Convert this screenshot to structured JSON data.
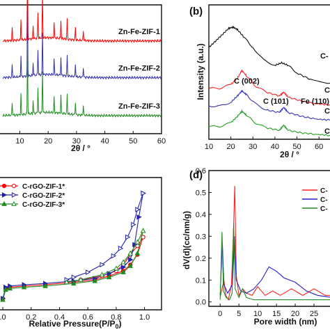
{
  "chart_data": [
    {
      "panel": "a",
      "type": "line",
      "xlabel": "2θ / °",
      "xlim": [
        3,
        60
      ],
      "xticks": [
        10,
        20,
        30,
        40,
        50,
        60
      ],
      "series": [
        {
          "name": "Zn-Fe-ZIF-1",
          "color": "#ff0000",
          "baseline": 0.72,
          "peaks": [
            [
              7.3,
              0.1
            ],
            [
              10.4,
              0.16
            ],
            [
              12.7,
              0.55
            ],
            [
              14.7,
              0.1
            ],
            [
              16.4,
              0.2
            ],
            [
              18.0,
              0.32
            ],
            [
              22.1,
              0.12
            ],
            [
              24.5,
              0.14
            ],
            [
              26.7,
              0.16
            ],
            [
              29.6,
              0.1
            ],
            [
              32.4,
              0.08
            ]
          ]
        },
        {
          "name": "Zn-Fe-ZIF-2",
          "color": "#3333aa",
          "baseline": 0.435,
          "peaks": [
            [
              7.3,
              0.1
            ],
            [
              10.4,
              0.16
            ],
            [
              12.7,
              0.55
            ],
            [
              14.7,
              0.1
            ],
            [
              16.4,
              0.2
            ],
            [
              18.0,
              0.32
            ],
            [
              22.1,
              0.12
            ],
            [
              24.5,
              0.14
            ],
            [
              26.7,
              0.16
            ],
            [
              29.6,
              0.1
            ],
            [
              32.4,
              0.08
            ]
          ]
        },
        {
          "name": "Zn-Fe-ZIF-3",
          "color": "#228b22",
          "baseline": 0.14,
          "peaks": [
            [
              7.3,
              0.1
            ],
            [
              10.4,
              0.16
            ],
            [
              12.7,
              0.55
            ],
            [
              14.7,
              0.1
            ],
            [
              16.4,
              0.2
            ],
            [
              18.0,
              0.32
            ],
            [
              22.1,
              0.12
            ],
            [
              24.5,
              0.14
            ],
            [
              26.7,
              0.16
            ],
            [
              29.6,
              0.1
            ],
            [
              32.4,
              0.08
            ]
          ]
        }
      ]
    },
    {
      "panel": "b",
      "type": "line",
      "label": "(b)",
      "xlabel": "2θ / °",
      "ylabel": "Intensity (a.u.)",
      "xlim": [
        10,
        65
      ],
      "xticks": [
        10,
        20,
        30,
        40,
        50,
        60
      ],
      "xtick_labels": [
        "10",
        "20",
        "30",
        "40",
        "50",
        "60"
      ],
      "annotations": [
        "C (002)",
        "C (101)",
        "Fe (110)"
      ],
      "series_labels": [
        "C-",
        "C",
        "C",
        "C"
      ],
      "series": [
        {
          "color": "#111111",
          "points": [
            [
              10,
              0.72
            ],
            [
              13,
              0.77
            ],
            [
              16,
              0.82
            ],
            [
              19,
              0.87
            ],
            [
              21,
              0.88
            ],
            [
              23,
              0.86
            ],
            [
              26,
              0.8
            ],
            [
              30,
              0.72
            ],
            [
              35,
              0.62
            ],
            [
              40,
              0.58
            ],
            [
              43,
              0.6
            ],
            [
              46,
              0.58
            ],
            [
              50,
              0.52
            ],
            [
              56,
              0.47
            ],
            [
              65,
              0.44
            ]
          ]
        },
        {
          "color": "#ff2020",
          "points": [
            [
              10,
              0.4
            ],
            [
              15,
              0.4
            ],
            [
              20,
              0.43
            ],
            [
              23,
              0.48
            ],
            [
              25,
              0.54
            ],
            [
              27,
              0.5
            ],
            [
              31,
              0.42
            ],
            [
              36,
              0.37
            ],
            [
              42,
              0.34
            ],
            [
              44,
              0.37
            ],
            [
              46,
              0.33
            ],
            [
              52,
              0.3
            ],
            [
              58,
              0.28
            ],
            [
              65,
              0.27
            ]
          ]
        },
        {
          "color": "#3333bb",
          "points": [
            [
              10,
              0.26
            ],
            [
              15,
              0.26
            ],
            [
              20,
              0.29
            ],
            [
              23,
              0.34
            ],
            [
              25,
              0.38
            ],
            [
              27,
              0.35
            ],
            [
              31,
              0.28
            ],
            [
              36,
              0.23
            ],
            [
              42,
              0.21
            ],
            [
              44,
              0.25
            ],
            [
              46,
              0.21
            ],
            [
              52,
              0.18
            ],
            [
              58,
              0.16
            ],
            [
              65,
              0.15
            ]
          ]
        },
        {
          "color": "#22a022",
          "points": [
            [
              10,
              0.1
            ],
            [
              15,
              0.1
            ],
            [
              20,
              0.13
            ],
            [
              23,
              0.18
            ],
            [
              25,
              0.22
            ],
            [
              27,
              0.19
            ],
            [
              31,
              0.13
            ],
            [
              36,
              0.09
            ],
            [
              42,
              0.07
            ],
            [
              44,
              0.11
            ],
            [
              46,
              0.07
            ],
            [
              52,
              0.05
            ],
            [
              58,
              0.04
            ],
            [
              65,
              0.03
            ]
          ]
        }
      ]
    },
    {
      "panel": "c",
      "type": "line",
      "xlabel": "Relative Pressure(P/P",
      "xlabel_sub": "0",
      "xlabel_end": ")",
      "xlim": [
        -0.02,
        1.12
      ],
      "xticks": [
        0.0,
        0.2,
        0.4,
        0.6,
        0.8,
        1.0
      ],
      "xtick_labels": [
        ".0",
        "0.2",
        "0.4",
        "0.6",
        "0.8",
        "1.0"
      ],
      "legend_position": "top-left",
      "series": [
        {
          "name": "C-rGO-ZIF-1*",
          "color": "#ff0000",
          "marker": "circle",
          "adsorption": [
            [
              0.0,
              0.09
            ],
            [
              0.02,
              0.17
            ],
            [
              0.05,
              0.18
            ],
            [
              0.15,
              0.19
            ],
            [
              0.3,
              0.2
            ],
            [
              0.5,
              0.22
            ],
            [
              0.65,
              0.24
            ],
            [
              0.75,
              0.27
            ],
            [
              0.85,
              0.31
            ],
            [
              0.9,
              0.36
            ],
            [
              0.95,
              0.44
            ],
            [
              0.99,
              0.58
            ]
          ],
          "desorption": [
            [
              0.99,
              0.58
            ],
            [
              0.95,
              0.51
            ],
            [
              0.9,
              0.44
            ],
            [
              0.85,
              0.36
            ],
            [
              0.8,
              0.31
            ],
            [
              0.7,
              0.27
            ],
            [
              0.55,
              0.24
            ],
            [
              0.45,
              0.22
            ]
          ]
        },
        {
          "name": "C-rGO-ZIF-2*",
          "color": "#2222aa",
          "marker": "triangle-right",
          "adsorption": [
            [
              0.0,
              0.09
            ],
            [
              0.02,
              0.18
            ],
            [
              0.05,
              0.19
            ],
            [
              0.15,
              0.2
            ],
            [
              0.3,
              0.21
            ],
            [
              0.5,
              0.23
            ],
            [
              0.65,
              0.25
            ],
            [
              0.75,
              0.29
            ],
            [
              0.85,
              0.34
            ],
            [
              0.9,
              0.4
            ],
            [
              0.93,
              0.52
            ],
            [
              0.96,
              0.74
            ],
            [
              0.99,
              0.93
            ]
          ],
          "desorption": [
            [
              0.99,
              0.93
            ],
            [
              0.95,
              0.8
            ],
            [
              0.92,
              0.68
            ],
            [
              0.88,
              0.58
            ],
            [
              0.83,
              0.49
            ],
            [
              0.78,
              0.43
            ],
            [
              0.7,
              0.36
            ],
            [
              0.6,
              0.3
            ],
            [
              0.5,
              0.26
            ],
            [
              0.45,
              0.24
            ]
          ]
        },
        {
          "name": "C-rGO-ZIF-3*",
          "color": "#228b22",
          "marker": "triangle-up",
          "adsorption": [
            [
              0.0,
              0.08
            ],
            [
              0.02,
              0.16
            ],
            [
              0.05,
              0.17
            ],
            [
              0.15,
              0.18
            ],
            [
              0.3,
              0.19
            ],
            [
              0.5,
              0.21
            ],
            [
              0.65,
              0.23
            ],
            [
              0.75,
              0.26
            ],
            [
              0.85,
              0.3
            ],
            [
              0.9,
              0.35
            ],
            [
              0.95,
              0.45
            ],
            [
              0.99,
              0.63
            ]
          ],
          "desorption": [
            [
              0.99,
              0.63
            ],
            [
              0.95,
              0.54
            ],
            [
              0.9,
              0.45
            ],
            [
              0.85,
              0.38
            ],
            [
              0.8,
              0.33
            ],
            [
              0.7,
              0.28
            ],
            [
              0.55,
              0.24
            ],
            [
              0.45,
              0.22
            ]
          ]
        }
      ]
    },
    {
      "panel": "d",
      "type": "line",
      "label": "(d)",
      "xlabel": "Pore width (nm)",
      "ylabel": "dV(d)(cc/nm/g)",
      "xlim": [
        -3,
        30
      ],
      "ylim": [
        -0.02,
        0.6
      ],
      "xticks": [
        0,
        5,
        10,
        15,
        20,
        25
      ],
      "xtick_labels": [
        "0",
        "5",
        "10",
        "15",
        "20",
        "25"
      ],
      "yticks": [
        0.0,
        0.1,
        0.2,
        0.3,
        0.4,
        0.5,
        0.6
      ],
      "ytick_labels": [
        "0.0",
        "0.1",
        "0.2",
        "0.3",
        "0.4",
        "0.5",
        "0.6"
      ],
      "legend_position": "top-right",
      "legend_labels": [
        "C-",
        "C-",
        "C-"
      ],
      "series": [
        {
          "color": "#ff2020",
          "points": [
            [
              0,
              0.02
            ],
            [
              1,
              0.1
            ],
            [
              1.5,
              0.03
            ],
            [
              2.2,
              0.01
            ],
            [
              3.0,
              0.08
            ],
            [
              3.5,
              0.3
            ],
            [
              3.9,
              0.53
            ],
            [
              4.3,
              0.12
            ],
            [
              5,
              0.03
            ],
            [
              6,
              0.06
            ],
            [
              7,
              0.04
            ],
            [
              8.5,
              0.03
            ],
            [
              10,
              0.07
            ],
            [
              12,
              0.03
            ],
            [
              14,
              0.05
            ],
            [
              16,
              0.03
            ],
            [
              19,
              0.06
            ],
            [
              22,
              0.03
            ],
            [
              25,
              0.06
            ],
            [
              28,
              0.03
            ],
            [
              30,
              0.03
            ]
          ]
        },
        {
          "color": "#2020cc",
          "points": [
            [
              0,
              0.03
            ],
            [
              0.6,
              0.27
            ],
            [
              1.0,
              0.08
            ],
            [
              2.0,
              0.04
            ],
            [
              3.3,
              0.08
            ],
            [
              3.8,
              0.3
            ],
            [
              4.3,
              0.1
            ],
            [
              5.5,
              0.05
            ],
            [
              7,
              0.04
            ],
            [
              9,
              0.06
            ],
            [
              11,
              0.1
            ],
            [
              13,
              0.16
            ],
            [
              15,
              0.14
            ],
            [
              17,
              0.11
            ],
            [
              20,
              0.09
            ],
            [
              23,
              0.05
            ],
            [
              26,
              0.03
            ],
            [
              30,
              0.02
            ]
          ]
        },
        {
          "color": "#228b22",
          "points": [
            [
              0,
              0.01
            ],
            [
              0.5,
              0.32
            ],
            [
              0.9,
              0.05
            ],
            [
              1.6,
              0.02
            ],
            [
              2.5,
              0.01
            ],
            [
              3.2,
              0.04
            ],
            [
              3.6,
              0.36
            ],
            [
              4.0,
              0.06
            ],
            [
              5,
              0.02
            ],
            [
              6,
              0.06
            ],
            [
              7,
              0.02
            ],
            [
              9,
              0.01
            ],
            [
              15,
              0.01
            ],
            [
              30,
              0.01
            ]
          ]
        }
      ]
    }
  ]
}
